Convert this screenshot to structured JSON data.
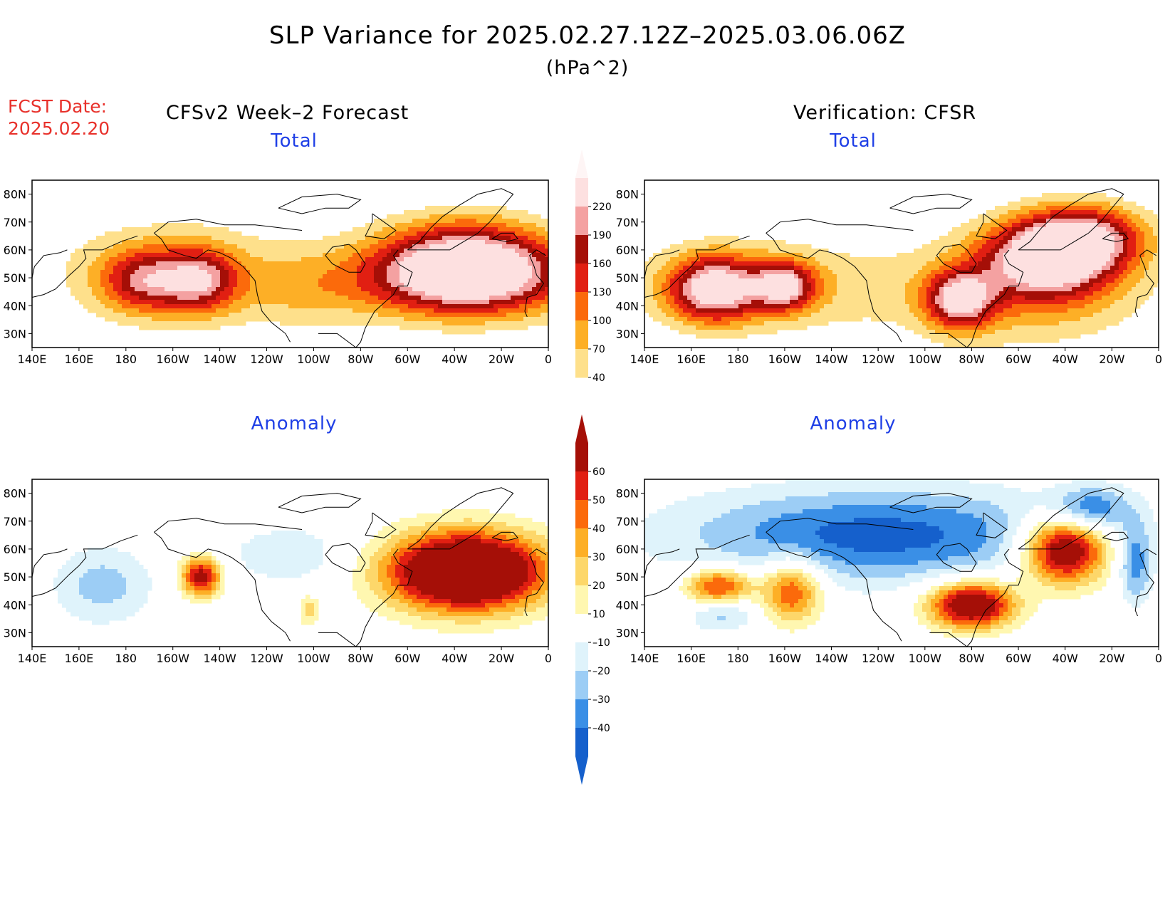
{
  "title": "SLP Variance for 2025.02.27.12Z–2025.03.06.06Z",
  "units": "(hPa^2)",
  "forecast_date_label": "FCST Date:",
  "forecast_date": "2025.02.20",
  "headers": {
    "left": "CFSv2 Week–2 Forecast",
    "right": "Verification: CFSR"
  },
  "panels": [
    {
      "id": "forecast-total",
      "title": "Total"
    },
    {
      "id": "verification-total",
      "title": "Total"
    },
    {
      "id": "forecast-anomaly",
      "title": "Anomaly"
    },
    {
      "id": "verification-anomaly",
      "title": "Anomaly"
    }
  ],
  "axes": {
    "lon_labels": [
      "140E",
      "160E",
      "180",
      "160W",
      "140W",
      "120W",
      "100W",
      "80W",
      "60W",
      "40W",
      "20W",
      "0"
    ],
    "lat_labels": [
      "80N",
      "70N",
      "60N",
      "50N",
      "40N",
      "30N"
    ],
    "lat_range": [
      25,
      85
    ],
    "lon_range": [
      140,
      360
    ]
  },
  "colorbars": {
    "total": {
      "levels": [
        "40",
        "70",
        "100",
        "130",
        "160",
        "190",
        "220"
      ],
      "colors": [
        "#fee08b",
        "#fdaf26",
        "#fb6a0b",
        "#e11f12",
        "#a50f07",
        "#f4a1a1",
        "#fde0e0"
      ]
    },
    "anomaly": {
      "levels": [
        "60",
        "50",
        "40",
        "30",
        "20",
        "10",
        "–10",
        "–20",
        "–30",
        "–40"
      ],
      "colors": [
        "#a50f07",
        "#e11f12",
        "#fb6a0b",
        "#fdaf26",
        "#fdd76a",
        "#fff7b0",
        "#ffffff",
        "#dff3fb",
        "#9ccdf5",
        "#3a8fe6",
        "#1560cc"
      ]
    }
  },
  "chart_data": [
    {
      "type": "heatmap",
      "name": "forecast-total",
      "blobs": [
        {
          "lon": 325,
          "lat": 50,
          "amp": 260,
          "slon": 32,
          "slat": 10
        },
        {
          "lon": 325,
          "lat": 60,
          "amp": 120,
          "slon": 25,
          "slat": 10
        },
        {
          "lon": 188,
          "lat": 49,
          "amp": 140,
          "slon": 13,
          "slat": 8
        },
        {
          "lon": 212,
          "lat": 49,
          "amp": 150,
          "slon": 11,
          "slat": 8
        },
        {
          "lon": 200,
          "lat": 52,
          "amp": 70,
          "slon": 40,
          "slat": 14
        },
        {
          "lon": 255,
          "lat": 45,
          "amp": 45,
          "slon": 20,
          "slat": 10
        }
      ]
    },
    {
      "type": "heatmap",
      "name": "verification-total",
      "blobs": [
        {
          "lon": 313,
          "lat": 57,
          "amp": 230,
          "slon": 20,
          "slat": 10
        },
        {
          "lon": 330,
          "lat": 65,
          "amp": 160,
          "slon": 18,
          "slat": 8
        },
        {
          "lon": 275,
          "lat": 42,
          "amp": 200,
          "slon": 10,
          "slat": 7
        },
        {
          "lon": 170,
          "lat": 46,
          "amp": 210,
          "slon": 13,
          "slat": 8
        },
        {
          "lon": 200,
          "lat": 47,
          "amp": 180,
          "slon": 9,
          "slat": 6
        },
        {
          "lon": 185,
          "lat": 47,
          "amp": 80,
          "slon": 40,
          "slat": 12
        },
        {
          "lon": 300,
          "lat": 45,
          "amp": 80,
          "slon": 40,
          "slat": 15
        }
      ]
    },
    {
      "type": "heatmap",
      "name": "forecast-anomaly",
      "blobs": [
        {
          "lon": 325,
          "lat": 52,
          "amp": 110,
          "slon": 24,
          "slat": 10
        },
        {
          "lon": 212,
          "lat": 50,
          "amp": 70,
          "slon": 6,
          "slat": 5
        },
        {
          "lon": 170,
          "lat": 47,
          "amp": -25,
          "slon": 15,
          "slat": 10
        },
        {
          "lon": 250,
          "lat": 58,
          "amp": -18,
          "slon": 20,
          "slat": 8
        },
        {
          "lon": 258,
          "lat": 38,
          "amp": 25,
          "slon": 3,
          "slat": 4
        }
      ]
    },
    {
      "type": "heatmap",
      "name": "verification-anomaly",
      "blobs": [
        {
          "lon": 240,
          "lat": 65,
          "amp": -45,
          "slon": 60,
          "slat": 12
        },
        {
          "lon": 330,
          "lat": 74,
          "amp": -40,
          "slon": 12,
          "slat": 6
        },
        {
          "lon": 320,
          "lat": 60,
          "amp": 90,
          "slon": 13,
          "slat": 9
        },
        {
          "lon": 280,
          "lat": 40,
          "amp": 85,
          "slon": 13,
          "slat": 6
        },
        {
          "lon": 172,
          "lat": 46,
          "amp": 65,
          "slon": 10,
          "slat": 5
        },
        {
          "lon": 203,
          "lat": 45,
          "amp": 55,
          "slon": 9,
          "slat": 8
        },
        {
          "lon": 173,
          "lat": 38,
          "amp": -30,
          "slon": 10,
          "slat": 5
        },
        {
          "lon": 350,
          "lat": 55,
          "amp": -35,
          "slon": 5,
          "slat": 10
        }
      ]
    }
  ]
}
